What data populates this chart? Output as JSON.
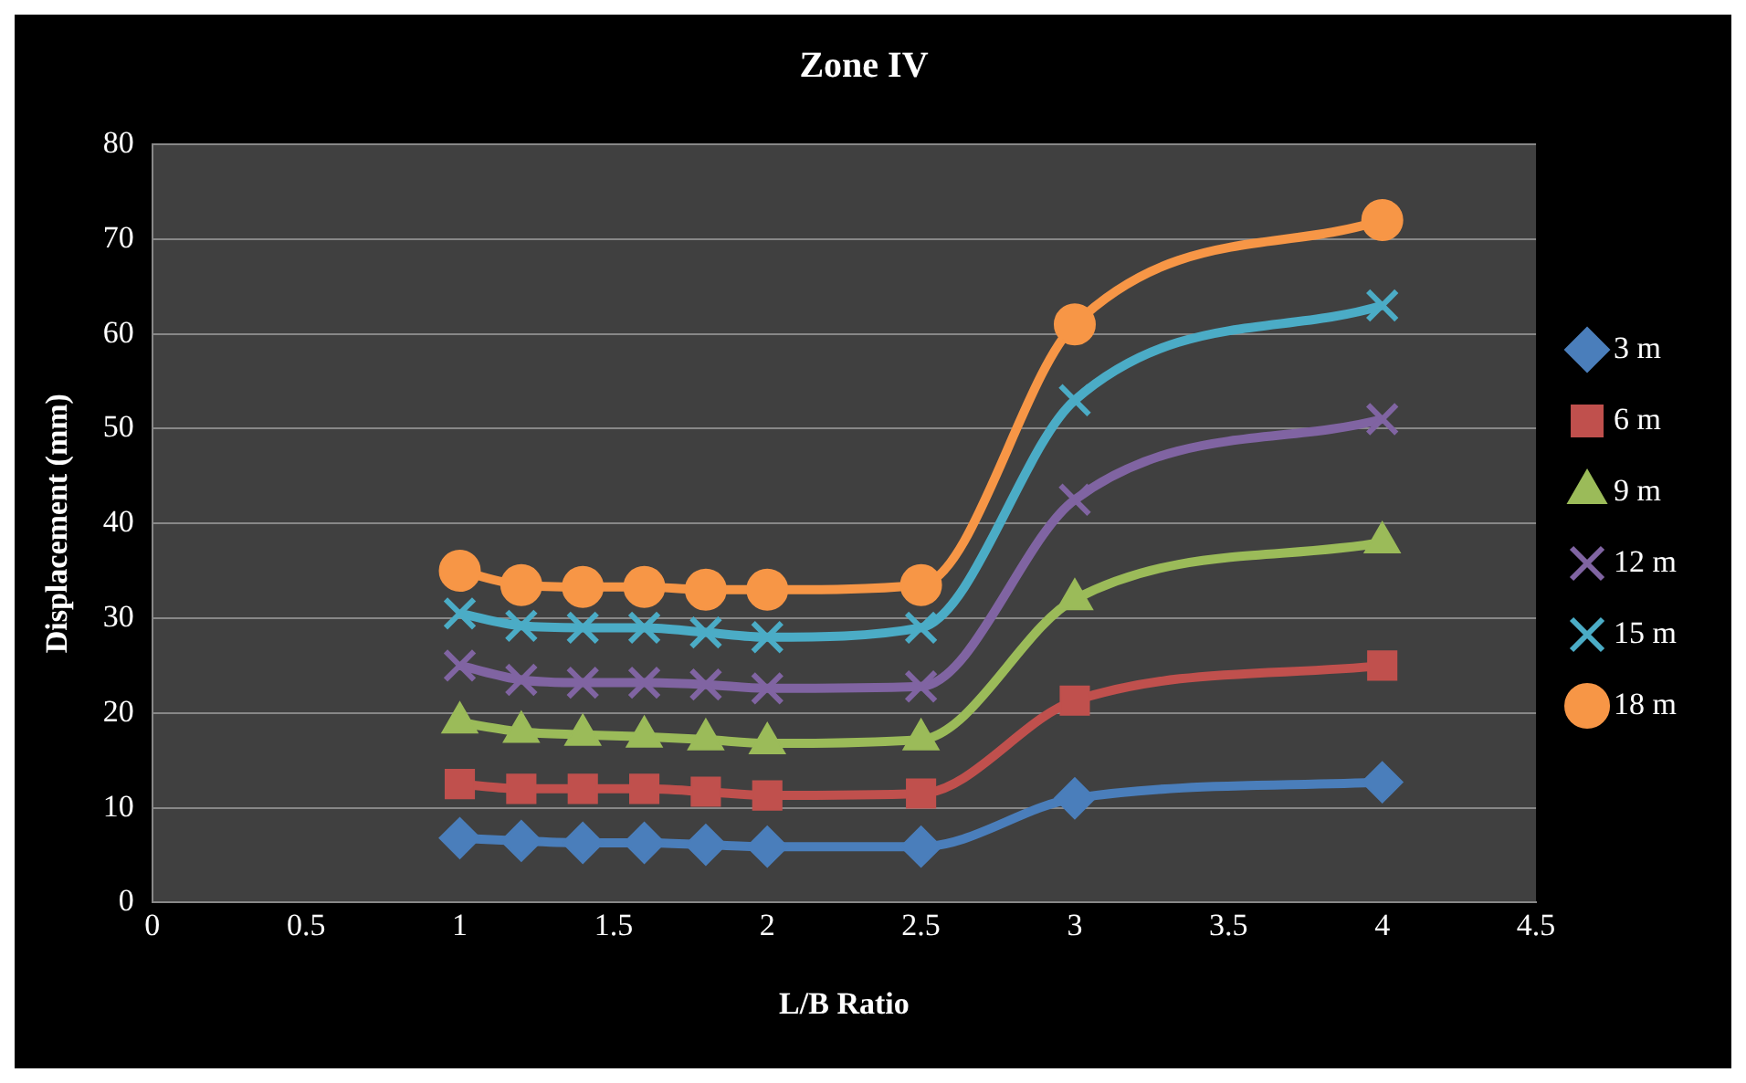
{
  "chart_data": {
    "type": "line",
    "title": "Zone IV",
    "xlabel": "L/B Ratio",
    "ylabel": "Displacement (mm)",
    "x": [
      1,
      1.2,
      1.4,
      1.6,
      1.8,
      2,
      2.5,
      3,
      4
    ],
    "series": [
      {
        "name": "3 m",
        "color": "#4a7ebb",
        "marker": "diamond",
        "values": [
          6.8,
          6.5,
          6.3,
          6.3,
          6.1,
          5.9,
          5.9,
          11,
          12.7
        ]
      },
      {
        "name": "6 m",
        "color": "#c0504d",
        "marker": "square",
        "values": [
          12.5,
          12,
          12,
          12,
          11.7,
          11.3,
          11.5,
          21.3,
          25
        ]
      },
      {
        "name": "9 m",
        "color": "#9bbb59",
        "marker": "triangle",
        "values": [
          19,
          18,
          17.7,
          17.5,
          17.2,
          16.8,
          17.2,
          32,
          38
        ]
      },
      {
        "name": "12 m",
        "color": "#8064a2",
        "marker": "cross",
        "values": [
          25,
          23.5,
          23.2,
          23.2,
          23,
          22.6,
          22.8,
          42.5,
          51
        ]
      },
      {
        "name": "15 m",
        "color": "#4bacc6",
        "marker": "cross",
        "values": [
          30.5,
          29.2,
          29,
          29,
          28.5,
          28,
          29,
          53,
          63
        ]
      },
      {
        "name": "18 m",
        "color": "#f79646",
        "marker": "circle",
        "values": [
          35,
          33.5,
          33.3,
          33.3,
          33,
          33,
          33.5,
          61,
          72
        ]
      }
    ],
    "xlim": [
      0,
      4.5
    ],
    "xticks": [
      0,
      0.5,
      1,
      1.5,
      2,
      2.5,
      3,
      3.5,
      4,
      4.5
    ],
    "ylim": [
      0,
      80
    ],
    "yticks": [
      0,
      10,
      20,
      30,
      40,
      50,
      60,
      70,
      80
    ],
    "grid": "y",
    "legend": "right"
  }
}
